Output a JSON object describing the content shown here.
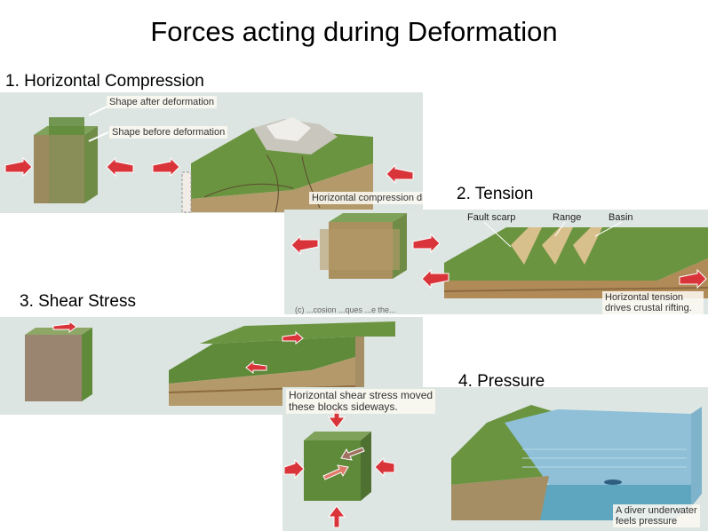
{
  "title": "Forces acting during Deformation",
  "sections": {
    "compression": {
      "heading": "1. Horizontal Compression",
      "label_after": "Shape after deformation",
      "label_before": "Shape before deformation",
      "caption": "Horizontal compression drives collision"
    },
    "tension": {
      "heading": "2. Tension",
      "label_fault_scarp": "Fault scarp",
      "label_range": "Range",
      "label_basin": "Basin",
      "caption": "Horizontal tension drives crustal rifting.",
      "partial_caption": "(c) ...cosion ...ques ...e the..."
    },
    "shear": {
      "heading": "3. Shear Stress",
      "caption_line1": "Horizontal shear stress moved",
      "caption_line2": "these blocks sideways."
    },
    "pressure": {
      "heading": "4. Pressure",
      "caption_line1": "A diver underwater",
      "caption_line2": "feels pressure"
    }
  },
  "colors": {
    "arrow": "#d9343a",
    "grass": "#5f8a3a",
    "soil": "#b0905f",
    "water": "#6aa6c8",
    "panel_bg": "#dde6e2"
  }
}
